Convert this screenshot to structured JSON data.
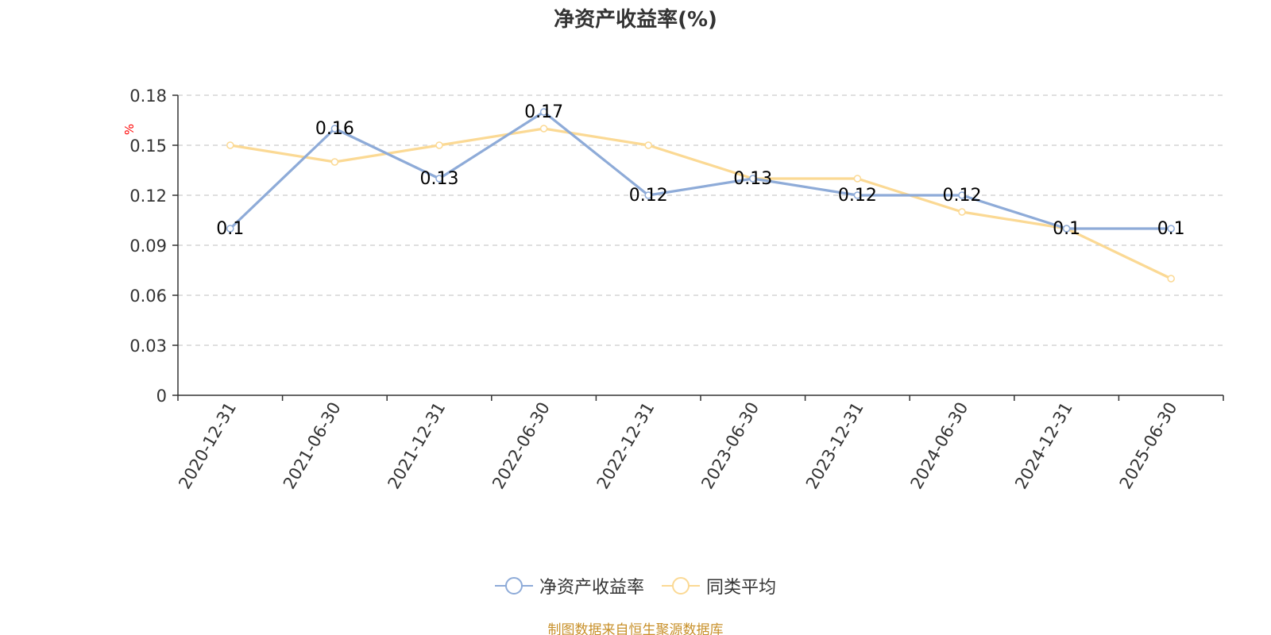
{
  "chart_data": {
    "type": "line",
    "title": "净资产收益率(%)",
    "ylabel": "%",
    "xlabel": "",
    "categories": [
      "2020-12-31",
      "2021-06-30",
      "2021-12-31",
      "2022-06-30",
      "2022-12-31",
      "2023-06-30",
      "2023-12-31",
      "2024-06-30",
      "2024-12-31",
      "2025-06-30"
    ],
    "ylim": [
      0,
      0.18
    ],
    "yticks": [
      "0",
      "0.03",
      "0.06",
      "0.09",
      "0.12",
      "0.15",
      "0.18"
    ],
    "grid": true,
    "legend_position": "bottom",
    "series": [
      {
        "name": "净资产收益率",
        "color": "#8eabd8",
        "values": [
          0.1,
          0.16,
          0.13,
          0.17,
          0.12,
          0.13,
          0.12,
          0.12,
          0.1,
          0.1
        ],
        "data_labels": [
          "0.1",
          "0.16",
          "0.13",
          "0.17",
          "0.12",
          "0.13",
          "0.12",
          "0.12",
          "0.1",
          "0.1"
        ]
      },
      {
        "name": "同类平均",
        "color": "#fbd994",
        "values": [
          0.15,
          0.14,
          0.15,
          0.16,
          0.15,
          0.13,
          0.13,
          0.11,
          0.1,
          0.07
        ]
      }
    ]
  },
  "footer": {
    "source_note": "制图数据来自恒生聚源数据库"
  }
}
